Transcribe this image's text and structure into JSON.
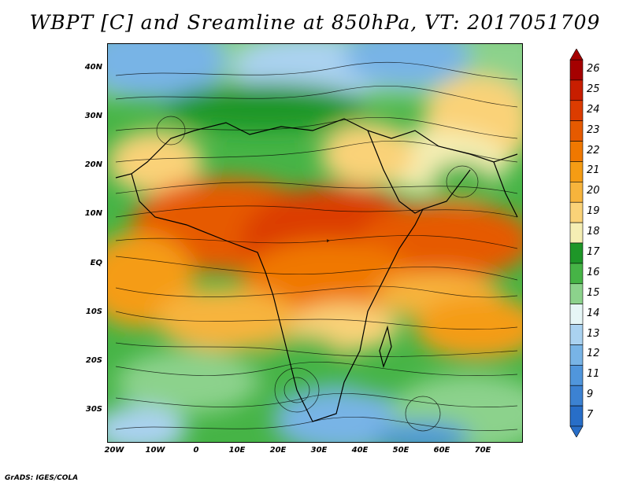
{
  "title": "WBPT [C] and Sreamline at 850hPa, VT: 2017051709",
  "credit": "GrADS: IGES/COLA",
  "lat_labels": [
    "40N",
    "30N",
    "20N",
    "10N",
    "EQ",
    "10S",
    "20S",
    "30S"
  ],
  "lon_labels": [
    "20W",
    "10W",
    "0",
    "10E",
    "20E",
    "30E",
    "40E",
    "50E",
    "60E",
    "70E"
  ],
  "colorbar": {
    "labels": [
      "26",
      "25",
      "24",
      "23",
      "22",
      "21",
      "20",
      "19",
      "18",
      "17",
      "16",
      "15",
      "14",
      "13",
      "12",
      "11",
      "9",
      "7"
    ],
    "colors": [
      "#a50000",
      "#c81e00",
      "#dc3c00",
      "#e65a00",
      "#f07800",
      "#f59c14",
      "#f7b43c",
      "#fad278",
      "#f5eeb4",
      "#1e9628",
      "#46b446",
      "#8cd28c",
      "#e6f6f6",
      "#aad2f0",
      "#78b4e6",
      "#5096dc",
      "#3c82d2",
      "#286ec8"
    ]
  }
}
